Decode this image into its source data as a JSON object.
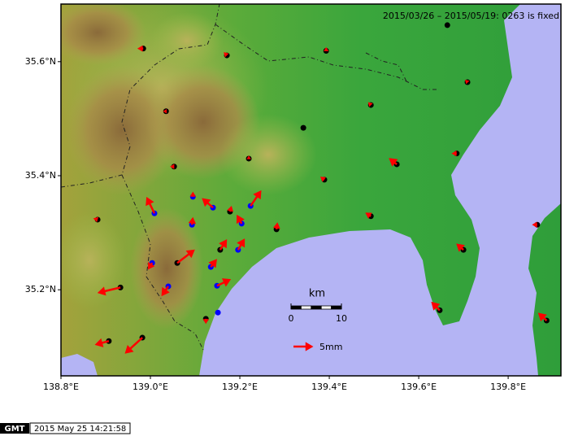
{
  "map": {
    "period_note": "2015/03/26 – 2015/05/19: 0263 is fixed",
    "xlim": [
      138.8,
      139.918
    ],
    "ylim": [
      35.049,
      35.701
    ],
    "xticks": [
      {
        "value": 138.8,
        "label": "138.8°E"
      },
      {
        "value": 139.0,
        "label": "139.0°E"
      },
      {
        "value": 139.2,
        "label": "139.2°E"
      },
      {
        "value": 139.4,
        "label": "139.4°E"
      },
      {
        "value": 139.6,
        "label": "139.6°E"
      },
      {
        "value": 139.8,
        "label": "139.8°E"
      }
    ],
    "yticks": [
      {
        "value": 35.2,
        "label": "35.2°N"
      },
      {
        "value": 35.4,
        "label": "35.4°N"
      },
      {
        "value": 35.6,
        "label": "35.6°N"
      }
    ],
    "vector_color": "#ff0000",
    "stations": [
      {
        "lon": 138.984,
        "lat": 35.623,
        "east": -1.1,
        "north": 0,
        "color": "#000000"
      },
      {
        "lon": 139.171,
        "lat": 35.611,
        "east": -0.5,
        "north": 0.5,
        "color": "#000000"
      },
      {
        "lon": 139.393,
        "lat": 35.619,
        "east": 0,
        "north": 0.5,
        "color": "#000000"
      },
      {
        "lon": 139.664,
        "lat": 35.664,
        "east": 0,
        "north": 0,
        "color": "#000000"
      },
      {
        "lon": 139.709,
        "lat": 35.564,
        "east": -0.3,
        "north": 0.3,
        "color": "#000000"
      },
      {
        "lon": 139.035,
        "lat": 35.513,
        "east": -0.3,
        "north": 0,
        "color": "#000000"
      },
      {
        "lon": 139.493,
        "lat": 35.524,
        "east": -0.4,
        "north": 0.4,
        "color": "#000000"
      },
      {
        "lon": 139.342,
        "lat": 35.484,
        "east": 0,
        "north": 0,
        "color": "#000000"
      },
      {
        "lon": 139.22,
        "lat": 35.43,
        "east": 0,
        "north": 0.3,
        "color": "#000000"
      },
      {
        "lon": 139.053,
        "lat": 35.416,
        "east": -0.6,
        "north": 0,
        "color": "#000000"
      },
      {
        "lon": 139.551,
        "lat": 35.42,
        "east": -1.8,
        "north": 1.4,
        "color": "#000000"
      },
      {
        "lon": 139.685,
        "lat": 35.439,
        "east": -0.9,
        "north": 0,
        "color": "#000000"
      },
      {
        "lon": 139.389,
        "lat": 35.393,
        "east": -0.7,
        "north": 0.5,
        "color": "#000000"
      },
      {
        "lon": 138.882,
        "lat": 35.323,
        "east": -0.7,
        "north": 0.2,
        "color": "#000000"
      },
      {
        "lon": 139.095,
        "lat": 35.363,
        "east": 0,
        "north": 0.9,
        "color": "#0000ff"
      },
      {
        "lon": 139.009,
        "lat": 35.334,
        "east": -2.0,
        "north": 4.1,
        "color": "#0000ff"
      },
      {
        "lon": 139.14,
        "lat": 35.344,
        "east": -2.7,
        "north": 2.3,
        "color": "#0000ff"
      },
      {
        "lon": 139.178,
        "lat": 35.337,
        "east": 0.3,
        "north": 1.1,
        "color": "#000000"
      },
      {
        "lon": 139.224,
        "lat": 35.347,
        "east": 2.7,
        "north": 3.9,
        "color": "#0000ff"
      },
      {
        "lon": 139.204,
        "lat": 35.316,
        "east": -1.1,
        "north": 2.0,
        "color": "#0000ff"
      },
      {
        "lon": 139.093,
        "lat": 35.314,
        "east": 0.2,
        "north": 1.6,
        "color": "#0000ff"
      },
      {
        "lon": 139.282,
        "lat": 35.306,
        "east": 0.2,
        "north": 1.4,
        "color": "#000000"
      },
      {
        "lon": 139.493,
        "lat": 35.329,
        "east": -1.1,
        "north": 0.7,
        "color": "#000000"
      },
      {
        "lon": 139.865,
        "lat": 35.314,
        "east": -0.9,
        "north": 0,
        "color": "#000000"
      },
      {
        "lon": 139.7,
        "lat": 35.27,
        "east": -1.6,
        "north": 1.4,
        "color": "#000000"
      },
      {
        "lon": 139.156,
        "lat": 35.27,
        "east": 1.6,
        "north": 2.5,
        "color": "#000000"
      },
      {
        "lon": 139.196,
        "lat": 35.27,
        "east": 1.6,
        "north": 2.7,
        "color": "#0000ff"
      },
      {
        "lon": 139.06,
        "lat": 35.247,
        "east": 4.5,
        "north": 3.4,
        "color": "#000000"
      },
      {
        "lon": 139.135,
        "lat": 35.24,
        "east": 1.4,
        "north": 1.8,
        "color": "#0000ff"
      },
      {
        "lon": 139.004,
        "lat": 35.247,
        "east": -0.9,
        "north": -1.4,
        "color": "#0000ff"
      },
      {
        "lon": 139.04,
        "lat": 35.206,
        "east": -1.6,
        "north": -2.3,
        "color": "#0000ff"
      },
      {
        "lon": 138.933,
        "lat": 35.204,
        "east": -5.9,
        "north": -1.4,
        "color": "#000000"
      },
      {
        "lon": 139.149,
        "lat": 35.207,
        "east": 3.4,
        "north": 1.6,
        "color": "#0000ff"
      },
      {
        "lon": 139.647,
        "lat": 35.164,
        "east": -2.0,
        "north": 2.0,
        "color": "#000000"
      },
      {
        "lon": 139.151,
        "lat": 35.16,
        "east": 0,
        "north": 0,
        "color": "#0000ff"
      },
      {
        "lon": 139.124,
        "lat": 35.149,
        "east": 0,
        "north": -0.9,
        "color": "#000000"
      },
      {
        "lon": 139.886,
        "lat": 35.146,
        "east": -2.0,
        "north": 1.8,
        "color": "#000000"
      },
      {
        "lon": 138.982,
        "lat": 35.116,
        "east": -4.5,
        "north": -4.1,
        "color": "#000000"
      },
      {
        "lon": 138.907,
        "lat": 35.11,
        "east": -3.4,
        "north": -0.9,
        "color": "#000000"
      }
    ],
    "scale_bar": {
      "title": "km",
      "ticks": [
        0,
        10
      ]
    },
    "legend": {
      "value": 5,
      "label": "5mm"
    }
  },
  "footer": {
    "logo": "GMT",
    "timestamp": "2015 May 25 14:21:58"
  }
}
